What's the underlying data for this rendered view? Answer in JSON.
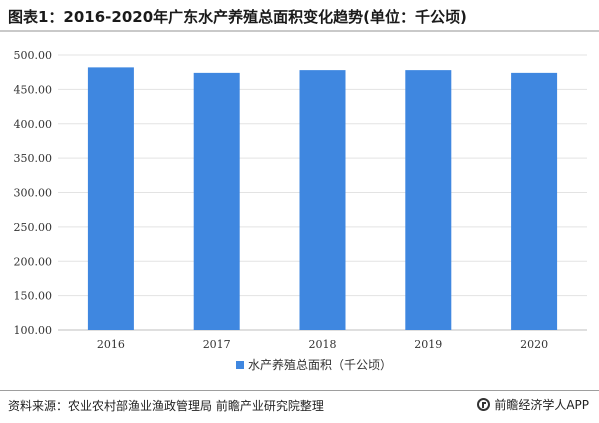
{
  "header": {
    "title": "图表1：2016-2020年广东水产养殖总面积变化趋势(单位：千公顷)"
  },
  "chart_data": {
    "type": "bar",
    "categories": [
      "2016",
      "2017",
      "2018",
      "2019",
      "2020"
    ],
    "series": [
      {
        "name": "水产养殖总面积（千公顷）",
        "values": [
          482,
          474,
          478,
          478,
          474
        ],
        "color": "#3f87e0"
      }
    ],
    "ylim": [
      100,
      500
    ],
    "yticks": [
      "100.00",
      "150.00",
      "200.00",
      "250.00",
      "300.00",
      "350.00",
      "400.00",
      "450.00",
      "500.00"
    ],
    "grid": true,
    "legend_position": "bottom"
  },
  "footer": {
    "source": "资料来源：农业农村部渔业渔政管理局 前瞻产业研究院整理",
    "brand": "前瞻经济学人APP",
    "brand_icon": "qianzhan-logo-icon"
  }
}
